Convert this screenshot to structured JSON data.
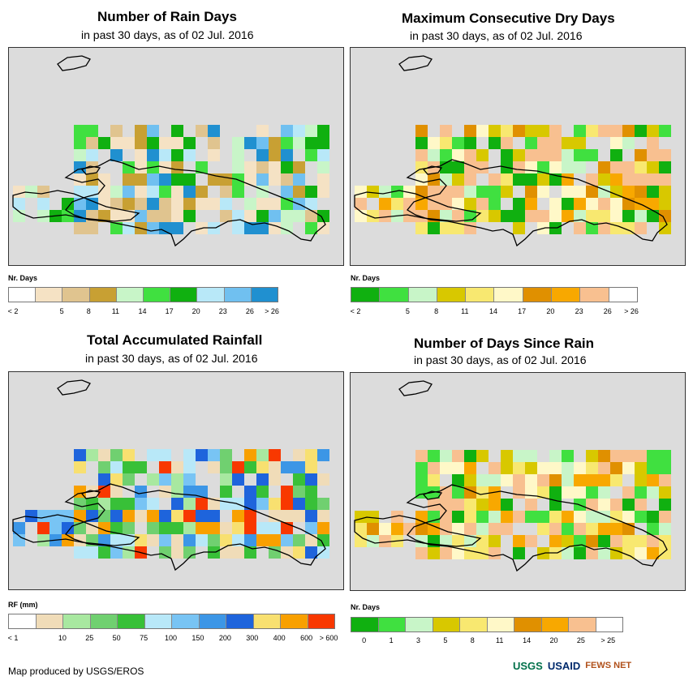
{
  "panels": [
    {
      "title": "Number of Rain Days",
      "subtitle": "in past 30 days, as of 02 Jul. 2016",
      "legend_title": "Nr. Days",
      "legend_colors": [
        "#ffffff",
        "#f5e2c4",
        "#e0c48f",
        "#c8a033",
        "#c8f5c8",
        "#40e040",
        "#10b010",
        "#b8e8f8",
        "#70c0f0",
        "#2090d0"
      ],
      "legend_labels": [
        "< 2",
        "5",
        "8",
        "11",
        "14",
        "17",
        "20",
        "23",
        "26",
        "> 26"
      ],
      "tick_mode": "boundary"
    },
    {
      "title": "Maximum Consecutive Dry Days",
      "subtitle": "in past 30 days, as of 02 Jul. 2016",
      "legend_title": "Nr. Days",
      "legend_colors": [
        "#10b010",
        "#40e040",
        "#c8f5c8",
        "#d8c800",
        "#f8e870",
        "#fff8c8",
        "#e09000",
        "#f8a800",
        "#f8c090",
        "#ffffff"
      ],
      "legend_labels": [
        "< 2",
        "5",
        "8",
        "11",
        "14",
        "17",
        "20",
        "23",
        "26",
        "> 26"
      ],
      "tick_mode": "boundary"
    },
    {
      "title": "Total Accumulated Rainfall",
      "subtitle": "in past 30 days, as of 02 Jul. 2016",
      "legend_title": "RF (mm)",
      "legend_colors": [
        "#ffffff",
        "#f0dcb8",
        "#a8e8a0",
        "#70d070",
        "#38c038",
        "#b8e8f8",
        "#78c4f4",
        "#3c96e6",
        "#1e64dc",
        "#f8e070",
        "#f8a000",
        "#f83800"
      ],
      "legend_labels": [
        "< 1",
        "10",
        "25",
        "50",
        "75",
        "100",
        "150",
        "200",
        "300",
        "400",
        "600",
        "> 600"
      ],
      "tick_mode": "boundary"
    },
    {
      "title": "Number of Days Since Rain",
      "subtitle": "in past 30 days, as of 02 Jul. 2016",
      "legend_title": "Nr. Days",
      "legend_colors": [
        "#10b010",
        "#40e040",
        "#c8f5c8",
        "#d8c800",
        "#f8e870",
        "#fff8c8",
        "#e09000",
        "#f8a800",
        "#f8c090",
        "#ffffff"
      ],
      "legend_labels": [
        "0",
        "1",
        "3",
        "5",
        "8",
        "11",
        "14",
        "20",
        "25",
        "> 25"
      ],
      "tick_mode": "center"
    }
  ],
  "footer": {
    "credit": "Map produced by USGS/EROS",
    "logos": [
      "USGS",
      "USAID",
      "FEWS NET"
    ]
  },
  "colors": {
    "map_background": "#dcdcdc",
    "coastline": "#000000"
  }
}
